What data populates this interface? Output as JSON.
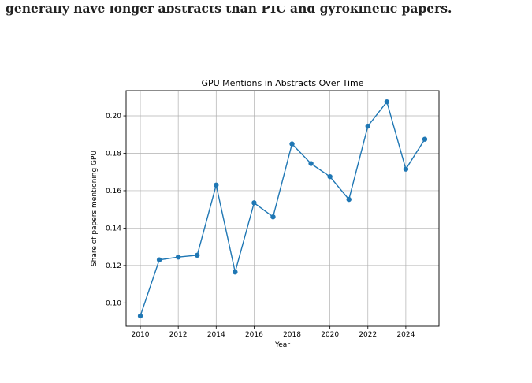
{
  "document": {
    "caption_fragment": "generally have longer abstracts than PIC and gyrokinetic papers."
  },
  "chart_data": {
    "type": "line",
    "title": "GPU Mentions in Abstracts Over Time",
    "xlabel": "Year",
    "ylabel": "Share of papers mentioning GPU",
    "x": [
      2010,
      2011,
      2012,
      2013,
      2014,
      2015,
      2016,
      2017,
      2018,
      2019,
      2020,
      2021,
      2022,
      2023,
      2024,
      2025
    ],
    "values": [
      0.093,
      0.123,
      0.1245,
      0.1255,
      0.163,
      0.1165,
      0.1535,
      0.146,
      0.185,
      0.1745,
      0.1675,
      0.1553,
      0.1945,
      0.2075,
      0.1715,
      0.1875
    ],
    "xlim": [
      2009.25,
      2025.75
    ],
    "ylim": [
      0.0875,
      0.2135
    ],
    "xticks": [
      2010,
      2012,
      2014,
      2016,
      2018,
      2020,
      2022,
      2024
    ],
    "yticks": [
      0.1,
      0.12,
      0.14,
      0.16,
      0.18,
      0.2
    ],
    "ytick_labels": [
      "0.10",
      "0.12",
      "0.14",
      "0.16",
      "0.18",
      "0.20"
    ],
    "grid": true,
    "marker": "circle",
    "line_color": "#1f77b4"
  }
}
